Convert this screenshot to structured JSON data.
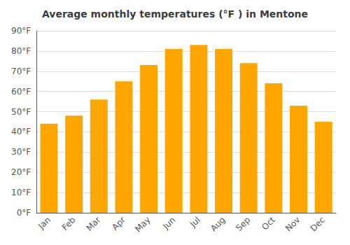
{
  "chart_data": {
    "type": "bar",
    "title": "Average monthly temperatures (°F ) in Mentone",
    "categories": [
      "Jan",
      "Feb",
      "Mar",
      "Apr",
      "May",
      "Jun",
      "Jul",
      "Aug",
      "Sep",
      "Oct",
      "Nov",
      "Dec"
    ],
    "values": [
      44,
      48,
      56,
      65,
      73,
      81,
      83,
      81,
      74,
      64,
      53,
      45
    ],
    "color": "#FFA500",
    "ylim": [
      0,
      90
    ],
    "yticks": [
      {
        "value": 0,
        "label": "0°F"
      },
      {
        "value": 10,
        "label": "10°F"
      },
      {
        "value": 20,
        "label": "20°F"
      },
      {
        "value": 30,
        "label": "30°F"
      },
      {
        "value": 40,
        "label": "40°F"
      },
      {
        "value": 50,
        "label": "50°F"
      },
      {
        "value": 60,
        "label": "60°F"
      },
      {
        "value": 70,
        "label": "70°F"
      },
      {
        "value": 80,
        "label": "80°F"
      },
      {
        "value": 90,
        "label": "90°F"
      }
    ],
    "grid": true
  }
}
